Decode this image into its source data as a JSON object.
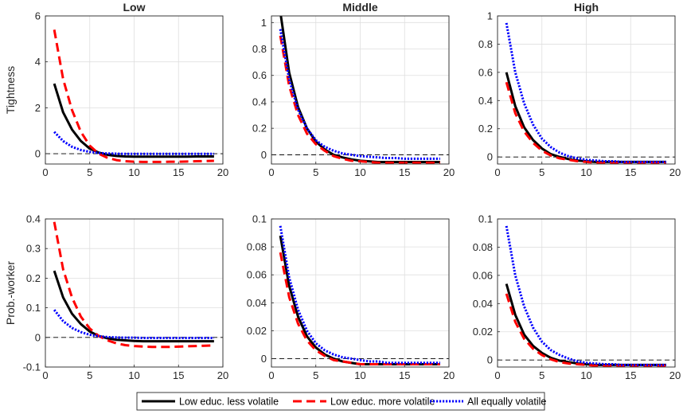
{
  "chart_data": [
    {
      "type": "line",
      "title": "Low",
      "ylabel": "Tightness",
      "xlabel": "",
      "xlim": [
        0,
        20
      ],
      "ylim": [
        -0.45,
        6
      ],
      "xticks": [
        0,
        5,
        10,
        15,
        20
      ],
      "yticks": [
        0,
        2,
        4,
        6
      ],
      "yticklabels": [
        "0",
        "2",
        "4",
        "6"
      ],
      "grid": true,
      "zero_line": true,
      "x": [
        1,
        2,
        3,
        4,
        5,
        6,
        7,
        8,
        9,
        10,
        11,
        12,
        13,
        14,
        15,
        16,
        17,
        18,
        19
      ],
      "series": [
        {
          "key": "less",
          "values": [
            3.05,
            1.8,
            1.05,
            0.55,
            0.22,
            0.05,
            -0.05,
            -0.1,
            -0.12,
            -0.13,
            -0.13,
            -0.13,
            -0.13,
            -0.13,
            -0.13,
            -0.13,
            -0.12,
            -0.12,
            -0.12
          ]
        },
        {
          "key": "more",
          "values": [
            5.4,
            3.25,
            1.9,
            0.95,
            0.35,
            0.0,
            -0.18,
            -0.28,
            -0.33,
            -0.35,
            -0.36,
            -0.36,
            -0.36,
            -0.35,
            -0.35,
            -0.34,
            -0.33,
            -0.32,
            -0.31
          ]
        },
        {
          "key": "equal",
          "values": [
            0.95,
            0.55,
            0.3,
            0.16,
            0.08,
            0.03,
            0.01,
            0.0,
            -0.01,
            -0.01,
            -0.01,
            -0.01,
            -0.01,
            -0.01,
            -0.01,
            -0.01,
            -0.01,
            -0.01,
            -0.01
          ]
        }
      ]
    },
    {
      "type": "line",
      "title": "Middle",
      "ylabel": "",
      "xlabel": "",
      "xlim": [
        0,
        20
      ],
      "ylim": [
        -0.07,
        1.05
      ],
      "xticks": [
        0,
        5,
        10,
        15,
        20
      ],
      "yticks": [
        0,
        0.2,
        0.4,
        0.6,
        0.8,
        1
      ],
      "yticklabels": [
        "0",
        "0.2",
        "0.4",
        "0.6",
        "0.8",
        "1"
      ],
      "grid": true,
      "zero_line": true,
      "x": [
        1,
        2,
        3,
        4,
        5,
        6,
        7,
        8,
        9,
        10,
        11,
        12,
        13,
        14,
        15,
        16,
        17,
        18,
        19
      ],
      "series": [
        {
          "key": "less",
          "values": [
            1.08,
            0.62,
            0.36,
            0.2,
            0.1,
            0.04,
            0.0,
            -0.02,
            -0.035,
            -0.045,
            -0.05,
            -0.055,
            -0.055,
            -0.055,
            -0.055,
            -0.055,
            -0.055,
            -0.055,
            -0.055
          ]
        },
        {
          "key": "more",
          "values": [
            0.9,
            0.52,
            0.3,
            0.16,
            0.08,
            0.03,
            -0.01,
            -0.03,
            -0.045,
            -0.05,
            -0.055,
            -0.06,
            -0.06,
            -0.06,
            -0.06,
            -0.06,
            -0.06,
            -0.06,
            -0.06
          ]
        },
        {
          "key": "equal",
          "values": [
            0.95,
            0.57,
            0.34,
            0.2,
            0.11,
            0.06,
            0.03,
            0.01,
            0.0,
            -0.01,
            -0.015,
            -0.02,
            -0.025,
            -0.025,
            -0.03,
            -0.03,
            -0.03,
            -0.03,
            -0.03
          ]
        }
      ]
    },
    {
      "type": "line",
      "title": "High",
      "ylabel": "",
      "xlabel": "",
      "xlim": [
        0,
        20
      ],
      "ylim": [
        -0.05,
        1.0
      ],
      "xticks": [
        0,
        5,
        10,
        15,
        20
      ],
      "yticks": [
        0,
        0.2,
        0.4,
        0.6,
        0.8,
        1
      ],
      "yticklabels": [
        "0",
        "0.2",
        "0.4",
        "0.6",
        "0.8",
        "1"
      ],
      "grid": true,
      "zero_line": true,
      "x": [
        1,
        2,
        3,
        4,
        5,
        6,
        7,
        8,
        9,
        10,
        11,
        12,
        13,
        14,
        15,
        16,
        17,
        18,
        19
      ],
      "series": [
        {
          "key": "less",
          "values": [
            0.6,
            0.36,
            0.21,
            0.12,
            0.06,
            0.02,
            0.0,
            -0.015,
            -0.025,
            -0.03,
            -0.035,
            -0.035,
            -0.035,
            -0.035,
            -0.035,
            -0.035,
            -0.035,
            -0.035,
            -0.035
          ]
        },
        {
          "key": "more",
          "values": [
            0.53,
            0.31,
            0.18,
            0.1,
            0.045,
            0.01,
            -0.01,
            -0.02,
            -0.03,
            -0.035,
            -0.04,
            -0.04,
            -0.04,
            -0.04,
            -0.04,
            -0.04,
            -0.04,
            -0.04,
            -0.04
          ]
        },
        {
          "key": "equal",
          "values": [
            0.95,
            0.6,
            0.38,
            0.23,
            0.13,
            0.07,
            0.03,
            0.005,
            -0.01,
            -0.02,
            -0.025,
            -0.03,
            -0.03,
            -0.035,
            -0.035,
            -0.035,
            -0.035,
            -0.035,
            -0.035
          ]
        }
      ]
    },
    {
      "type": "line",
      "title": "",
      "ylabel": "Prob.-worker",
      "xlabel": "",
      "xlim": [
        0,
        20
      ],
      "ylim": [
        -0.1,
        0.4
      ],
      "xticks": [
        0,
        5,
        10,
        15,
        20
      ],
      "yticks": [
        -0.1,
        0,
        0.1,
        0.2,
        0.3,
        0.4
      ],
      "yticklabels": [
        "-0.1",
        "0",
        "0.1",
        "0.2",
        "0.3",
        "0.4"
      ],
      "grid": true,
      "zero_line": true,
      "x": [
        1,
        2,
        3,
        4,
        5,
        6,
        7,
        8,
        9,
        10,
        11,
        12,
        13,
        14,
        15,
        16,
        17,
        18,
        19
      ],
      "series": [
        {
          "key": "less",
          "values": [
            0.225,
            0.135,
            0.08,
            0.045,
            0.02,
            0.005,
            -0.003,
            -0.008,
            -0.01,
            -0.012,
            -0.013,
            -0.013,
            -0.013,
            -0.013,
            -0.013,
            -0.013,
            -0.013,
            -0.013,
            -0.013
          ]
        },
        {
          "key": "more",
          "values": [
            0.39,
            0.23,
            0.135,
            0.07,
            0.03,
            0.005,
            -0.01,
            -0.02,
            -0.026,
            -0.029,
            -0.031,
            -0.032,
            -0.032,
            -0.032,
            -0.031,
            -0.03,
            -0.029,
            -0.028,
            -0.027
          ]
        },
        {
          "key": "equal",
          "values": [
            0.093,
            0.055,
            0.032,
            0.018,
            0.009,
            0.004,
            0.001,
            0.0,
            -0.001,
            -0.001,
            -0.002,
            -0.002,
            -0.002,
            -0.002,
            -0.002,
            -0.002,
            -0.002,
            -0.002,
            -0.002
          ]
        }
      ]
    },
    {
      "type": "line",
      "title": "",
      "ylabel": "",
      "xlabel": "",
      "xlim": [
        0,
        20
      ],
      "ylim": [
        -0.006,
        0.1
      ],
      "xticks": [
        0,
        5,
        10,
        15,
        20
      ],
      "yticks": [
        0,
        0.02,
        0.04,
        0.06,
        0.08,
        0.1
      ],
      "yticklabels": [
        "0",
        "0.02",
        "0.04",
        "0.06",
        "0.08",
        "0.1"
      ],
      "grid": true,
      "zero_line": true,
      "x": [
        1,
        2,
        3,
        4,
        5,
        6,
        7,
        8,
        9,
        10,
        11,
        12,
        13,
        14,
        15,
        16,
        17,
        18,
        19
      ],
      "series": [
        {
          "key": "less",
          "values": [
            0.088,
            0.052,
            0.03,
            0.016,
            0.008,
            0.003,
            0.0,
            -0.002,
            -0.003,
            -0.004,
            -0.004,
            -0.004,
            -0.004,
            -0.004,
            -0.004,
            -0.004,
            -0.004,
            -0.004,
            -0.004
          ]
        },
        {
          "key": "more",
          "values": [
            0.076,
            0.044,
            0.025,
            0.013,
            0.006,
            0.002,
            -0.001,
            -0.002,
            -0.003,
            -0.004,
            -0.004,
            -0.004,
            -0.004,
            -0.004,
            -0.004,
            -0.004,
            -0.004,
            -0.004,
            -0.004
          ]
        },
        {
          "key": "equal",
          "values": [
            0.095,
            0.058,
            0.035,
            0.02,
            0.011,
            0.006,
            0.003,
            0.001,
            0.0,
            -0.001,
            -0.002,
            -0.002,
            -0.003,
            -0.003,
            -0.003,
            -0.003,
            -0.003,
            -0.003,
            -0.003
          ]
        }
      ]
    },
    {
      "type": "line",
      "title": "",
      "ylabel": "",
      "xlabel": "",
      "xlim": [
        0,
        20
      ],
      "ylim": [
        -0.005,
        0.1
      ],
      "xticks": [
        0,
        5,
        10,
        15,
        20
      ],
      "yticks": [
        0,
        0.02,
        0.04,
        0.06,
        0.08,
        0.1
      ],
      "yticklabels": [
        "0",
        "0.02",
        "0.04",
        "0.06",
        "0.08",
        "0.1"
      ],
      "grid": true,
      "zero_line": true,
      "x": [
        1,
        2,
        3,
        4,
        5,
        6,
        7,
        8,
        9,
        10,
        11,
        12,
        13,
        14,
        15,
        16,
        17,
        18,
        19
      ],
      "series": [
        {
          "key": "less",
          "values": [
            0.054,
            0.032,
            0.018,
            0.01,
            0.005,
            0.0015,
            -0.0005,
            -0.0015,
            -0.0025,
            -0.003,
            -0.0035,
            -0.0035,
            -0.0035,
            -0.0035,
            -0.0035,
            -0.0035,
            -0.0035,
            -0.0035,
            -0.0035
          ]
        },
        {
          "key": "more",
          "values": [
            0.047,
            0.027,
            0.015,
            0.008,
            0.0035,
            0.0005,
            -0.0015,
            -0.0025,
            -0.003,
            -0.0035,
            -0.004,
            -0.004,
            -0.004,
            -0.004,
            -0.004,
            -0.004,
            -0.004,
            -0.004,
            -0.004
          ]
        },
        {
          "key": "equal",
          "values": [
            0.095,
            0.06,
            0.038,
            0.023,
            0.013,
            0.007,
            0.0035,
            0.001,
            -0.001,
            -0.002,
            -0.0025,
            -0.003,
            -0.003,
            -0.0035,
            -0.0035,
            -0.0035,
            -0.0035,
            -0.0035,
            -0.0035
          ]
        }
      ]
    }
  ],
  "legend": {
    "placement": "bottom-center",
    "entries": [
      {
        "key": "less",
        "label": "Low educ. less volatile"
      },
      {
        "key": "more",
        "label": "Low educ. more volatile"
      },
      {
        "key": "equal",
        "label": "All equally volatile"
      }
    ]
  },
  "styles": {
    "less": {
      "color": "#000000",
      "dash": "solid"
    },
    "more": {
      "color": "#ff0000",
      "dash": "dashed"
    },
    "equal": {
      "color": "#0000ff",
      "dash": "dotted"
    }
  }
}
